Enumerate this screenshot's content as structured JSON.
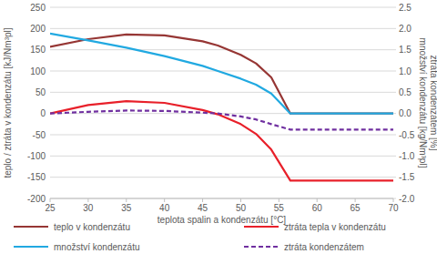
{
  "chart_data": {
    "type": "line",
    "xlabel": "teplota spalin a kondenzátu [°C]",
    "ylabel": "teplo / ztráta v kondenzátu [kJ/Nm³pl]",
    "y2label": [
      "množství kondenzátu [kg/Nm³pl]",
      "ztráta kondenzátem [%]"
    ],
    "x": [
      25,
      30,
      35,
      40,
      45,
      47,
      50,
      52,
      54,
      56.5,
      60,
      65,
      70
    ],
    "xlim": [
      25,
      70
    ],
    "xticks": [
      25,
      30,
      35,
      40,
      45,
      50,
      55,
      60,
      65,
      70
    ],
    "ylim": [
      -200,
      250
    ],
    "yticks": [
      -200,
      -150,
      -100,
      -50,
      0,
      50,
      100,
      150,
      200,
      250
    ],
    "y2lim": [
      -2,
      2.5
    ],
    "y2ticks": [
      {
        "value": -2,
        "label": "-2.0"
      },
      -1.5,
      {
        "value": -1,
        "label": "-1.0"
      },
      -0.5,
      {
        "value": 0,
        "label": "0.0"
      },
      0.5,
      {
        "value": 1,
        "label": "1.0"
      },
      1.5,
      {
        "value": 2,
        "label": "2.0"
      },
      2.5
    ],
    "grid": true,
    "legend": "bottom",
    "series": [
      {
        "name": "teplo v kondenzátu",
        "color": "#963634",
        "line_style": "solid",
        "axis": "y",
        "values": [
          157,
          175,
          186,
          184,
          170,
          160,
          138,
          118,
          85,
          0,
          0,
          0,
          0
        ]
      },
      {
        "name": "ztráta tepla v kondenzátu",
        "color": "#e8202a",
        "line_style": "solid",
        "axis": "y",
        "values": [
          0,
          20,
          29,
          25,
          8,
          -2,
          -25,
          -48,
          -85,
          -158,
          -158,
          -158,
          -158
        ]
      },
      {
        "name": "množství kondenzátu",
        "color": "#21a9e1",
        "line_style": "solid",
        "axis": "y2",
        "values": [
          1.88,
          1.72,
          1.55,
          1.35,
          1.12,
          1.0,
          0.82,
          0.68,
          0.47,
          0,
          0,
          0,
          0
        ]
      },
      {
        "name": "ztráta kondenzátem",
        "color": "#7030a0",
        "line_style": "dashed",
        "axis": "y2",
        "values": [
          0,
          0.04,
          0.07,
          0.06,
          0.02,
          0,
          -0.07,
          -0.14,
          -0.25,
          -0.38,
          -0.38,
          -0.38,
          -0.38
        ]
      }
    ]
  }
}
